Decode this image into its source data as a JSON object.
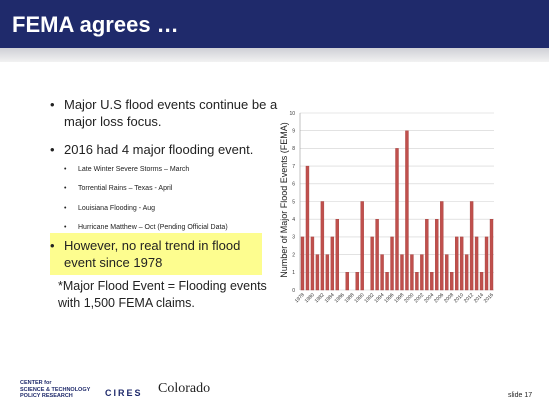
{
  "header": {
    "title": "FEMA agrees …"
  },
  "bullets": [
    "Major U.S flood events continue be a major loss focus.",
    "2016 had 4 major flooding event."
  ],
  "sub_bullets": [
    "Late Winter Severe Storms – March",
    "Torrential Rains – Texas - April",
    "Louisiana Flooding - Aug",
    "Hurricane Matthew – Oct  (Pending Official Data)"
  ],
  "highlight": "However, no real trend in flood event since 1978",
  "note": "*Major Flood Event = Flooding events with 1,500 FEMA claims.",
  "footer": {
    "logo1": [
      "CENTER for",
      "SCIENCE & TECHNOLOGY",
      "POLICY RESEARCH"
    ],
    "logo2": "CIRES",
    "logo3": "Colorado",
    "slide": "slide 17"
  },
  "chart_data": {
    "type": "bar",
    "y_label": "Number of Major Flood Events (FEMA)",
    "categories": [
      "1978",
      null,
      "1980",
      null,
      "1982",
      null,
      "1984",
      null,
      "1986",
      null,
      "1988",
      null,
      "1990",
      null,
      "1992",
      null,
      "1994",
      null,
      "1996",
      null,
      "1998",
      null,
      "2000",
      null,
      "2002",
      null,
      "2004",
      null,
      "2006",
      null,
      "2008",
      null,
      "2010",
      null,
      "2012",
      null,
      "2014",
      null,
      "2016"
    ],
    "values": [
      3,
      7,
      3,
      2,
      5,
      2,
      3,
      4,
      0,
      1,
      0,
      1,
      5,
      0,
      3,
      4,
      2,
      1,
      3,
      8,
      2,
      9,
      2,
      1,
      2,
      4,
      1,
      4,
      5,
      2,
      1,
      3,
      3,
      2,
      5,
      3,
      1,
      3,
      4
    ],
    "color": "#c0504d",
    "ylim": [
      0,
      10
    ],
    "yticks": [
      0,
      1,
      2,
      3,
      4,
      5,
      6,
      7,
      8,
      9,
      10
    ],
    "grid": true
  }
}
